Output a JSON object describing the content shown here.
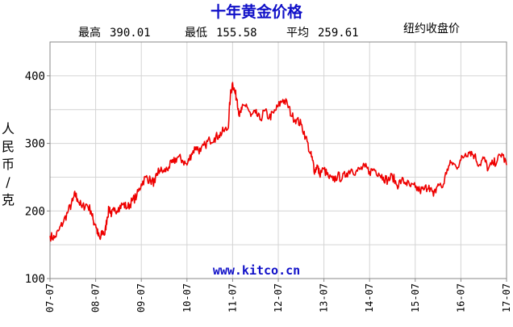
{
  "chart_data": {
    "type": "line",
    "title": "十年黄金价格",
    "stats": {
      "high_label": "最高",
      "high_value": "390.01",
      "low_label": "最低",
      "low_value": "155.58",
      "avg_label": "平均",
      "avg_value": "259.61"
    },
    "market_label": "纽约收盘价",
    "ylabel": "人民币/克",
    "watermark": "www.kitco.cn",
    "ylim": [
      100,
      450
    ],
    "yticks": [
      100,
      200,
      300,
      400
    ],
    "xlim": [
      2007.5,
      2017.5
    ],
    "xticks": [
      {
        "label": "07-07",
        "x": 2007.5
      },
      {
        "label": "08-07",
        "x": 2008.5
      },
      {
        "label": "09-07",
        "x": 2009.5
      },
      {
        "label": "10-07",
        "x": 2010.5
      },
      {
        "label": "11-07",
        "x": 2011.5
      },
      {
        "label": "12-07",
        "x": 2012.5
      },
      {
        "label": "13-07",
        "x": 2013.5
      },
      {
        "label": "14-07",
        "x": 2014.5
      },
      {
        "label": "15-07",
        "x": 2015.5
      },
      {
        "label": "16-07",
        "x": 2016.5
      },
      {
        "label": "17-07",
        "x": 2017.5
      }
    ],
    "grid": true,
    "line_color": "#ee0000",
    "x": [
      2007.5,
      2007.6,
      2007.7,
      2007.8,
      2007.9,
      2008.0,
      2008.05,
      2008.1,
      2008.2,
      2008.3,
      2008.4,
      2008.45,
      2008.5,
      2008.55,
      2008.6,
      2008.65,
      2008.7,
      2008.75,
      2008.8,
      2008.85,
      2008.9,
      2009.0,
      2009.1,
      2009.2,
      2009.3,
      2009.4,
      2009.5,
      2009.6,
      2009.7,
      2009.8,
      2009.85,
      2009.9,
      2010.0,
      2010.1,
      2010.2,
      2010.3,
      2010.4,
      2010.5,
      2010.6,
      2010.7,
      2010.8,
      2010.9,
      2011.0,
      2011.1,
      2011.2,
      2011.3,
      2011.4,
      2011.45,
      2011.5,
      2011.55,
      2011.6,
      2011.65,
      2011.7,
      2011.8,
      2011.9,
      2012.0,
      2012.1,
      2012.2,
      2012.3,
      2012.4,
      2012.5,
      2012.6,
      2012.7,
      2012.8,
      2012.9,
      2013.0,
      2013.1,
      2013.2,
      2013.25,
      2013.3,
      2013.35,
      2013.4,
      2013.5,
      2013.6,
      2013.7,
      2013.8,
      2013.9,
      2014.0,
      2014.1,
      2014.2,
      2014.3,
      2014.4,
      2014.5,
      2014.6,
      2014.7,
      2014.8,
      2014.9,
      2015.0,
      2015.1,
      2015.2,
      2015.3,
      2015.4,
      2015.5,
      2015.6,
      2015.7,
      2015.8,
      2015.9,
      2016.0,
      2016.1,
      2016.2,
      2016.3,
      2016.4,
      2016.5,
      2016.6,
      2016.7,
      2016.8,
      2016.9,
      2017.0,
      2017.1,
      2017.2,
      2017.3,
      2017.4,
      2017.5
    ],
    "y": [
      163,
      160,
      172,
      185,
      200,
      215,
      225,
      218,
      205,
      210,
      200,
      185,
      180,
      165,
      158,
      170,
      165,
      190,
      205,
      195,
      200,
      205,
      210,
      205,
      215,
      222,
      240,
      250,
      245,
      242,
      256,
      260,
      258,
      265,
      272,
      280,
      275,
      268,
      285,
      295,
      288,
      298,
      305,
      308,
      312,
      318,
      322,
      370,
      390,
      375,
      365,
      340,
      350,
      358,
      340,
      345,
      335,
      348,
      338,
      345,
      355,
      365,
      358,
      340,
      335,
      328,
      310,
      285,
      275,
      258,
      268,
      255,
      262,
      250,
      245,
      252,
      248,
      256,
      262,
      258,
      262,
      265,
      258,
      262,
      256,
      250,
      245,
      252,
      238,
      245,
      242,
      236,
      235,
      230,
      232,
      238,
      222,
      240,
      235,
      262,
      272,
      265,
      275,
      285,
      288,
      282,
      268,
      278,
      262,
      270,
      275,
      285,
      268
    ]
  }
}
